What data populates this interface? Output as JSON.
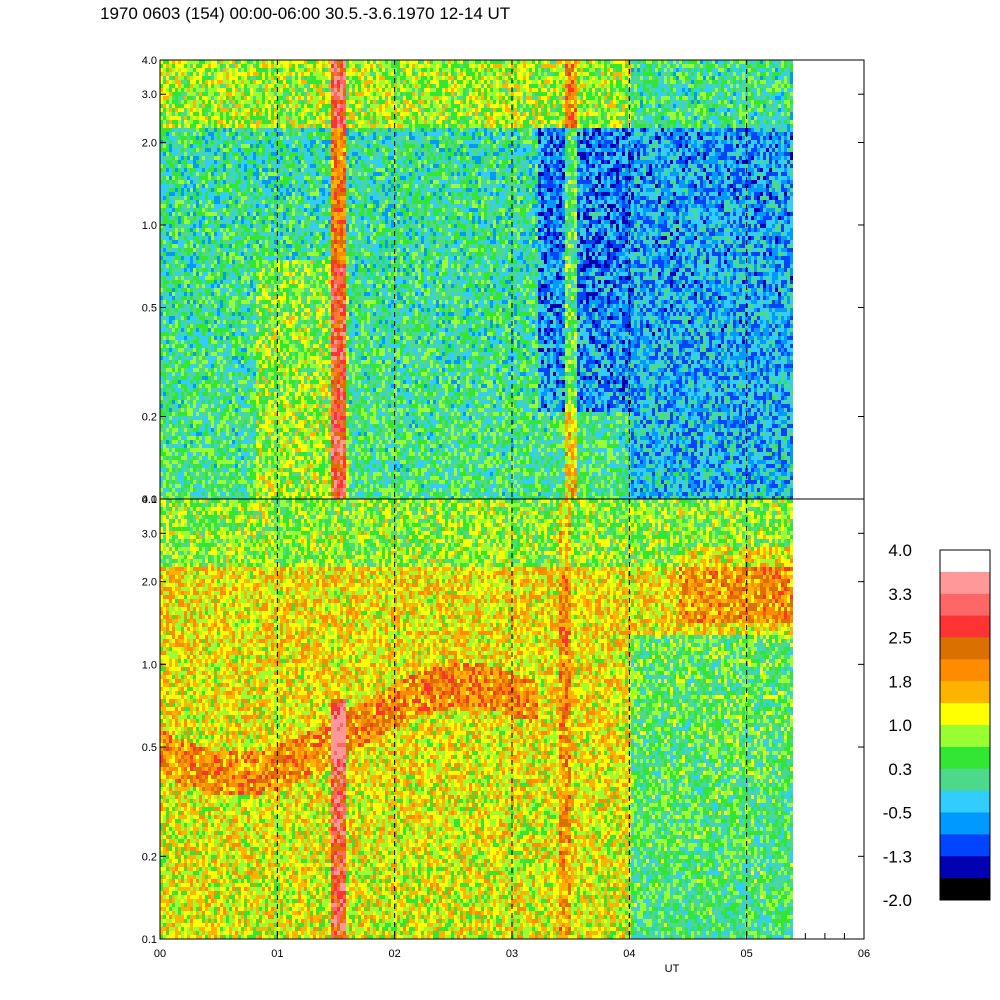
{
  "title": "1970 0603 (154) 00:00-06:00 30.5.-3.6.1970  12-14 UT",
  "chart_data": {
    "type": "heatmap",
    "xlabel": "UT",
    "x_ticks": [
      "00",
      "01",
      "02",
      "03",
      "04",
      "05",
      "06"
    ],
    "xlim": [
      0,
      6
    ],
    "data_end_hour": 5.37,
    "dashed_hours": [
      1,
      2,
      3,
      4,
      5
    ],
    "panels": [
      {
        "name": "top",
        "ylim": [
          0.1,
          4.0
        ],
        "yscale": "log",
        "y_ticks": [
          "4.0",
          "3.0",
          "2.0",
          "1.0",
          "0.5",
          "0.2",
          "0.1"
        ],
        "y_values": [
          4.0,
          3.0,
          2.0,
          1.0,
          0.5,
          0.2,
          0.1
        ]
      },
      {
        "name": "bottom",
        "ylim": [
          0.1,
          4.0
        ],
        "yscale": "log",
        "y_ticks": [
          "4.0",
          "3.0",
          "2.0",
          "1.0",
          "0.5",
          "0.2",
          "0.1"
        ],
        "y_values": [
          4.0,
          3.0,
          2.0,
          1.0,
          0.5,
          0.2,
          0.1
        ]
      }
    ],
    "colorbar": {
      "labels": [
        "4.0",
        "3.3",
        "2.5",
        "1.8",
        "1.0",
        "0.3",
        "-0.5",
        "-1.3",
        "-2.0"
      ],
      "colors": [
        "#ffffff",
        "#ff9999",
        "#ff6666",
        "#ff3333",
        "#d97000",
        "#ff8c00",
        "#ffb300",
        "#ffff00",
        "#99ff33",
        "#33e633",
        "#4dd98c",
        "#33ccff",
        "#0099ff",
        "#0044ff",
        "#0000b3",
        "#000000"
      ]
    }
  }
}
